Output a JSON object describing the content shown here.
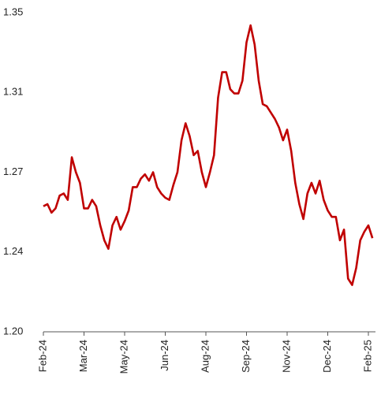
{
  "chart_data": {
    "type": "line",
    "categories": [
      "Feb-24",
      null,
      null,
      null,
      null,
      null,
      null,
      null,
      null,
      null,
      "Mar-24",
      null,
      null,
      null,
      null,
      null,
      null,
      null,
      null,
      null,
      "May-24",
      null,
      null,
      null,
      null,
      null,
      null,
      null,
      null,
      null,
      "Jun-24",
      null,
      null,
      null,
      null,
      null,
      null,
      null,
      null,
      null,
      "Aug-24",
      null,
      null,
      null,
      null,
      null,
      null,
      null,
      null,
      null,
      "Sep-24",
      null,
      null,
      null,
      null,
      null,
      null,
      null,
      null,
      null,
      "Nov-24",
      null,
      null,
      null,
      null,
      null,
      null,
      null,
      null,
      null,
      "Dec-24",
      null,
      null,
      null,
      null,
      null,
      null,
      null,
      null,
      null,
      "Feb-25",
      null
    ],
    "series": [
      {
        "color": "#c00000",
        "values": [
          1.259,
          1.26,
          1.256,
          1.258,
          1.264,
          1.265,
          1.262,
          1.282,
          1.275,
          1.27,
          1.258,
          1.258,
          1.262,
          1.259,
          1.25,
          1.243,
          1.239,
          1.25,
          1.254,
          1.248,
          1.252,
          1.257,
          1.268,
          1.268,
          1.272,
          1.274,
          1.271,
          1.275,
          1.268,
          1.265,
          1.263,
          1.262,
          1.269,
          1.275,
          1.29,
          1.298,
          1.292,
          1.283,
          1.285,
          1.275,
          1.268,
          1.275,
          1.283,
          1.31,
          1.322,
          1.322,
          1.314,
          1.312,
          1.312,
          1.318,
          1.336,
          1.344,
          1.335,
          1.318,
          1.307,
          1.306,
          1.303,
          1.3,
          1.296,
          1.29,
          1.295,
          1.285,
          1.27,
          1.26,
          1.253,
          1.265,
          1.27,
          1.265,
          1.271,
          1.262,
          1.257,
          1.254,
          1.254,
          1.243,
          1.248,
          1.225,
          1.222,
          1.23,
          1.243,
          1.247,
          1.25,
          1.244
        ]
      }
    ],
    "ylim": [
      1.2,
      1.35
    ],
    "yticks": [
      {
        "value": 1.2,
        "label": "1.20"
      },
      {
        "value": 1.2375,
        "label": "1.24"
      },
      {
        "value": 1.275,
        "label": "1.27"
      },
      {
        "value": 1.3125,
        "label": "1.31"
      },
      1.35
    ],
    "grid": false
  }
}
